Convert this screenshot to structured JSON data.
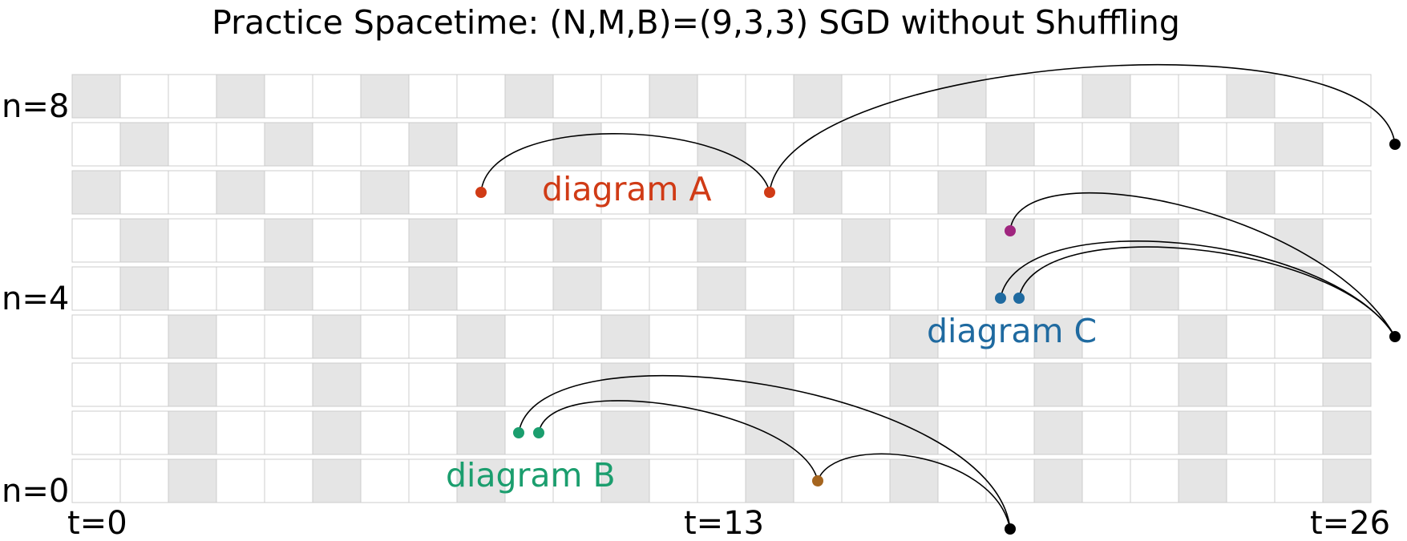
{
  "title": "Practice Spacetime: (N,M,B)=(9,3,3) SGD without Shuffling",
  "row_labels": {
    "top": "n=8",
    "middle": "n=4",
    "bottom": "n=0"
  },
  "time_labels": {
    "start": "t=0",
    "middle": "t=13",
    "end": "t=26"
  },
  "grid": {
    "rows": 9,
    "columns": 27,
    "cell_fill": "#ffffff",
    "shaded_fill": "#e5e5e5",
    "border_color": "#cccccc",
    "shaded_columns_by_row": [
      [
        0,
        3,
        6,
        9,
        12,
        15,
        18,
        21,
        24
      ],
      [
        1,
        4,
        7,
        10,
        13,
        16,
        19,
        22,
        25
      ],
      [
        0,
        3,
        6,
        9,
        12,
        15,
        18,
        21,
        24
      ],
      [
        1,
        4,
        7,
        10,
        13,
        16,
        19,
        22,
        25
      ],
      [
        1,
        4,
        7,
        10,
        13,
        16,
        19,
        22,
        25
      ],
      [
        2,
        5,
        8,
        11,
        14,
        17,
        20,
        23,
        26
      ],
      [
        2,
        5,
        8,
        11,
        14,
        17,
        20,
        23,
        26
      ],
      [
        2,
        5,
        8,
        11,
        14,
        17,
        20,
        23,
        26
      ],
      [
        2,
        5,
        8,
        11,
        14,
        17,
        20,
        23,
        26
      ]
    ]
  },
  "diagram_labels": [
    {
      "text": "diagram A",
      "color": "#d03b16"
    },
    {
      "text": "diagram B",
      "color": "#1b9e6e"
    },
    {
      "text": "diagram C",
      "color": "#1f6aa0"
    }
  ]
}
